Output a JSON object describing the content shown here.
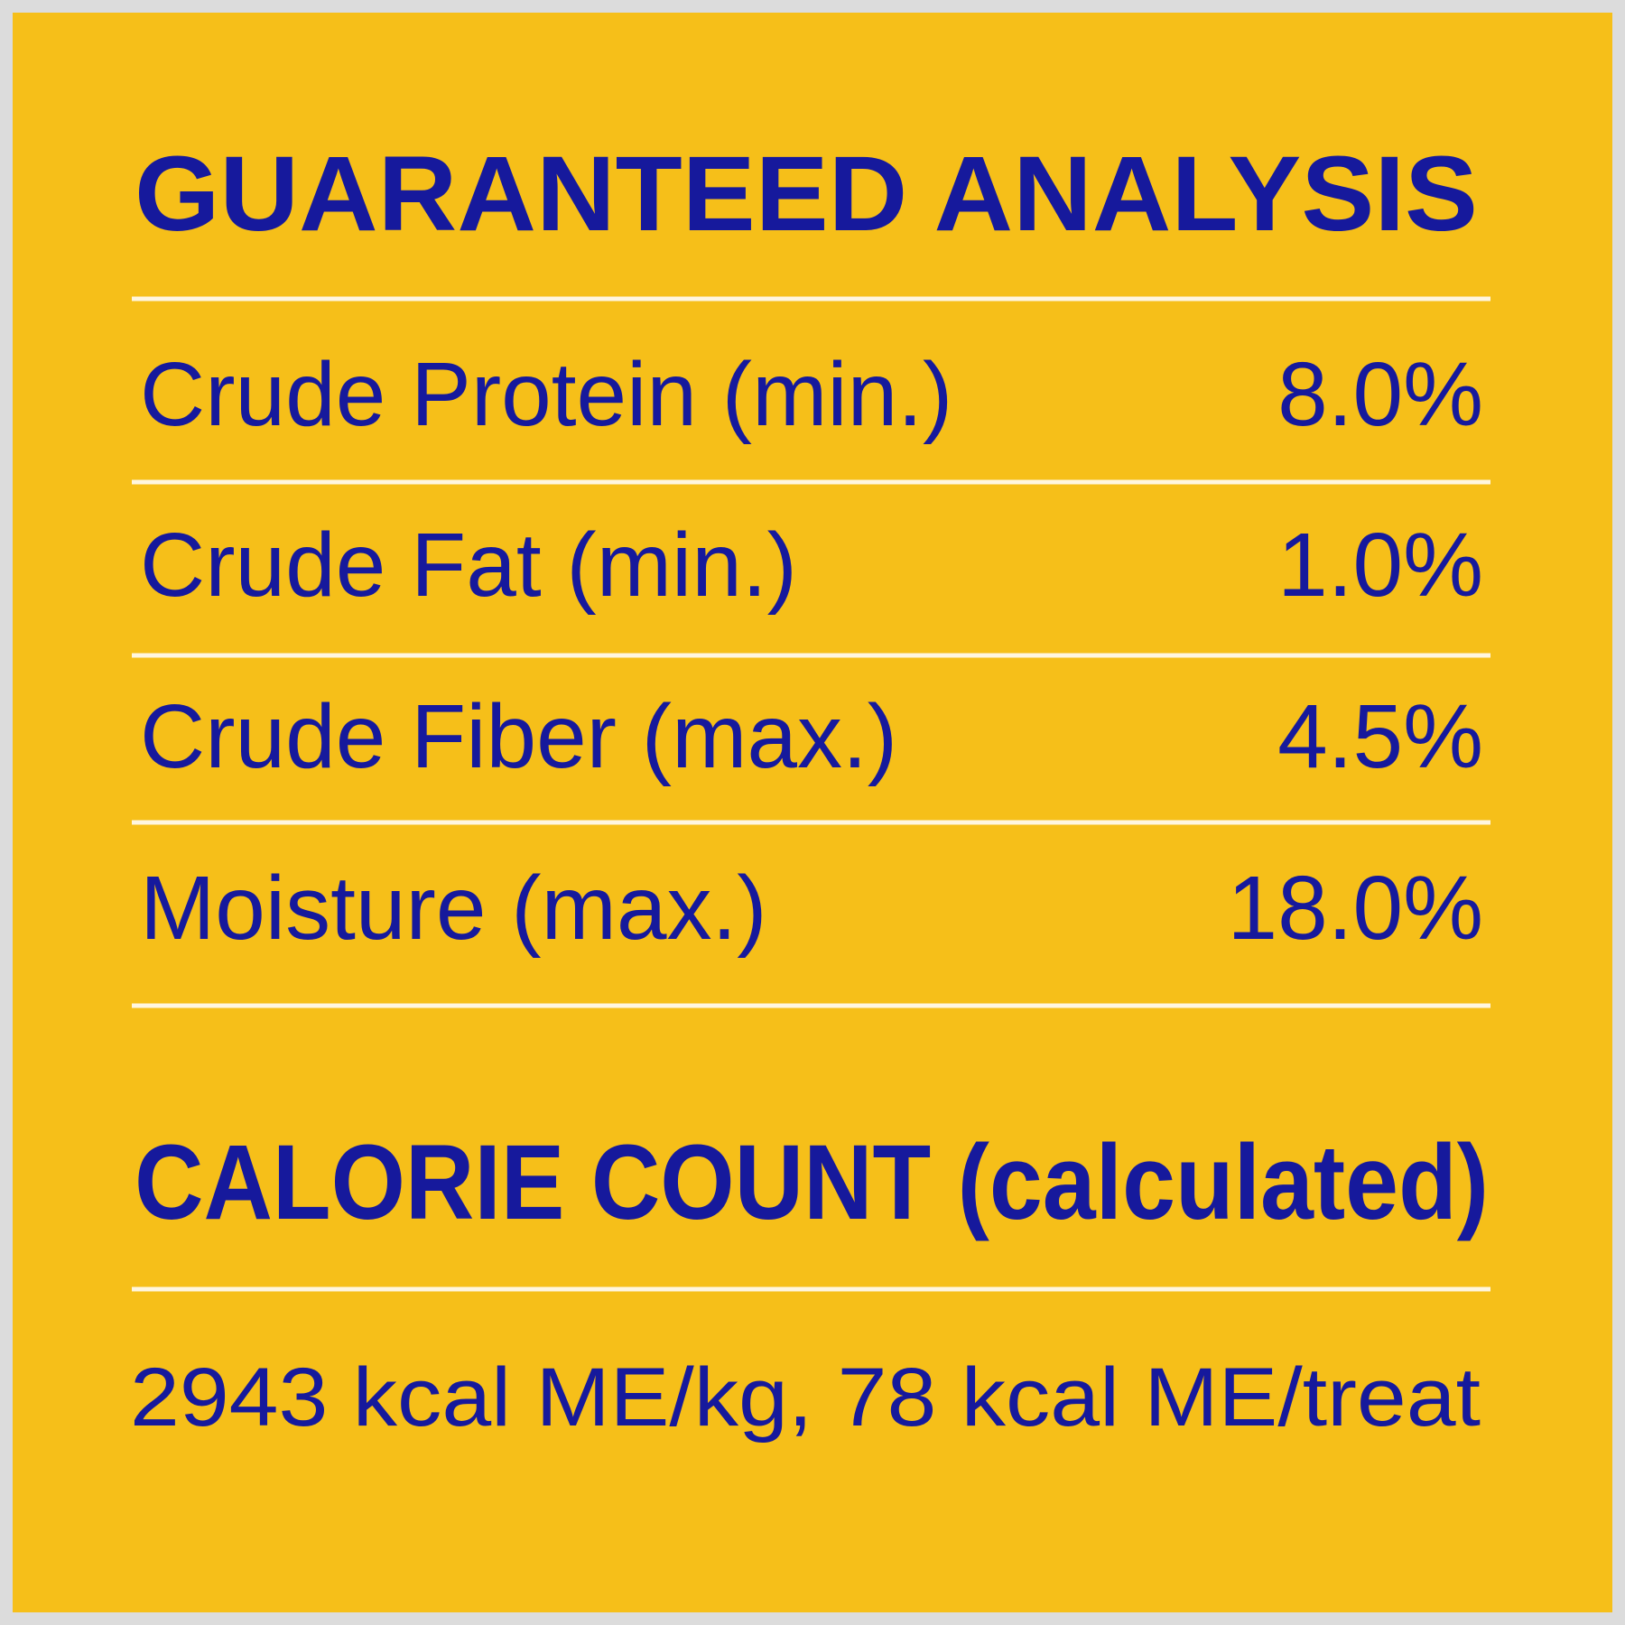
{
  "panel": {
    "title": "GUARANTEED ANALYSIS",
    "rows": [
      {
        "label": "Crude Protein (min.)",
        "value": "8.0%"
      },
      {
        "label": "Crude Fat (min.)",
        "value": "1.0%"
      },
      {
        "label": "Crude Fiber (max.)",
        "value": "4.5%"
      },
      {
        "label": "Moisture (max.)",
        "value": "18.0%"
      }
    ],
    "calorie_heading": "CALORIE COUNT (calculated)",
    "calorie_text": "2943 kcal ME/kg, 78 kcal ME/treat"
  }
}
